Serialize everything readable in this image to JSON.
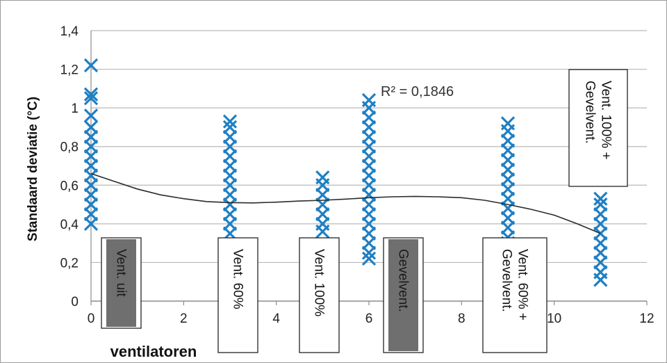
{
  "chart_data": {
    "type": "scatter",
    "title": "",
    "xlabel": "ventilatoren",
    "ylabel": "Standaard deviatie (°C)",
    "xlim": [
      0,
      12
    ],
    "ylim": [
      0,
      1.4
    ],
    "x_ticks": [
      "0",
      "2",
      "4",
      "6",
      "8",
      "10",
      "12"
    ],
    "y_ticks": [
      "0",
      "0,2",
      "0,4",
      "0,6",
      "0,8",
      "1",
      "1,2",
      "1,4"
    ],
    "grid": true,
    "marker": "x",
    "series_color": "#1f7fc4",
    "trend_color": "#2b2b2b",
    "series": [
      {
        "points": [
          {
            "x": 0,
            "y": 1.22
          },
          {
            "x": 0,
            "y": 1.07
          },
          {
            "x": 0,
            "y": 1.05
          },
          {
            "x": 0,
            "y": 0.96
          },
          {
            "x": 0,
            "y": 0.9
          },
          {
            "x": 0,
            "y": 0.85
          },
          {
            "x": 0,
            "y": 0.8
          },
          {
            "x": 0,
            "y": 0.75
          },
          {
            "x": 0,
            "y": 0.7
          },
          {
            "x": 0,
            "y": 0.65
          },
          {
            "x": 0,
            "y": 0.6
          },
          {
            "x": 0,
            "y": 0.55
          },
          {
            "x": 0,
            "y": 0.5
          },
          {
            "x": 0,
            "y": 0.45
          },
          {
            "x": 0,
            "y": 0.4
          },
          {
            "x": 3,
            "y": 0.93
          },
          {
            "x": 3,
            "y": 0.9
          },
          {
            "x": 3,
            "y": 0.85
          },
          {
            "x": 3,
            "y": 0.8
          },
          {
            "x": 3,
            "y": 0.75
          },
          {
            "x": 3,
            "y": 0.7
          },
          {
            "x": 3,
            "y": 0.65
          },
          {
            "x": 3,
            "y": 0.6
          },
          {
            "x": 3,
            "y": 0.55
          },
          {
            "x": 3,
            "y": 0.5
          },
          {
            "x": 3,
            "y": 0.45
          },
          {
            "x": 3,
            "y": 0.4
          },
          {
            "x": 3,
            "y": 0.35
          },
          {
            "x": 5,
            "y": 0.64
          },
          {
            "x": 5,
            "y": 0.6
          },
          {
            "x": 5,
            "y": 0.55
          },
          {
            "x": 5,
            "y": 0.5
          },
          {
            "x": 5,
            "y": 0.45
          },
          {
            "x": 5,
            "y": 0.4
          },
          {
            "x": 5,
            "y": 0.36
          },
          {
            "x": 6,
            "y": 1.04
          },
          {
            "x": 6,
            "y": 1.0
          },
          {
            "x": 6,
            "y": 0.95
          },
          {
            "x": 6,
            "y": 0.9
          },
          {
            "x": 6,
            "y": 0.85
          },
          {
            "x": 6,
            "y": 0.8
          },
          {
            "x": 6,
            "y": 0.75
          },
          {
            "x": 6,
            "y": 0.7
          },
          {
            "x": 6,
            "y": 0.65
          },
          {
            "x": 6,
            "y": 0.6
          },
          {
            "x": 6,
            "y": 0.55
          },
          {
            "x": 6,
            "y": 0.5
          },
          {
            "x": 6,
            "y": 0.45
          },
          {
            "x": 6,
            "y": 0.4
          },
          {
            "x": 6,
            "y": 0.35
          },
          {
            "x": 6,
            "y": 0.3
          },
          {
            "x": 6,
            "y": 0.25
          },
          {
            "x": 6,
            "y": 0.22
          },
          {
            "x": 9,
            "y": 0.92
          },
          {
            "x": 9,
            "y": 0.88
          },
          {
            "x": 9,
            "y": 0.83
          },
          {
            "x": 9,
            "y": 0.78
          },
          {
            "x": 9,
            "y": 0.73
          },
          {
            "x": 9,
            "y": 0.68
          },
          {
            "x": 9,
            "y": 0.63
          },
          {
            "x": 9,
            "y": 0.58
          },
          {
            "x": 9,
            "y": 0.53
          },
          {
            "x": 9,
            "y": 0.48
          },
          {
            "x": 9,
            "y": 0.43
          },
          {
            "x": 9,
            "y": 0.38
          },
          {
            "x": 9,
            "y": 0.33
          },
          {
            "x": 9,
            "y": 0.3
          },
          {
            "x": 11,
            "y": 0.53
          },
          {
            "x": 11,
            "y": 0.5
          },
          {
            "x": 11,
            "y": 0.45
          },
          {
            "x": 11,
            "y": 0.4
          },
          {
            "x": 11,
            "y": 0.35
          },
          {
            "x": 11,
            "y": 0.3
          },
          {
            "x": 11,
            "y": 0.25
          },
          {
            "x": 11,
            "y": 0.2
          },
          {
            "x": 11,
            "y": 0.15
          },
          {
            "x": 11,
            "y": 0.11
          }
        ]
      }
    ],
    "trendline": {
      "type": "polynomial",
      "label": "R² = 0,1846",
      "points": [
        {
          "x": 0,
          "y": 0.66
        },
        {
          "x": 0.5,
          "y": 0.62
        },
        {
          "x": 1,
          "y": 0.58
        },
        {
          "x": 1.5,
          "y": 0.55
        },
        {
          "x": 2,
          "y": 0.53
        },
        {
          "x": 2.5,
          "y": 0.515
        },
        {
          "x": 3,
          "y": 0.51
        },
        {
          "x": 3.5,
          "y": 0.508
        },
        {
          "x": 4,
          "y": 0.512
        },
        {
          "x": 4.5,
          "y": 0.518
        },
        {
          "x": 5,
          "y": 0.522
        },
        {
          "x": 5.5,
          "y": 0.528
        },
        {
          "x": 6,
          "y": 0.535
        },
        {
          "x": 6.5,
          "y": 0.54
        },
        {
          "x": 7,
          "y": 0.542
        },
        {
          "x": 7.5,
          "y": 0.54
        },
        {
          "x": 8,
          "y": 0.535
        },
        {
          "x": 8.5,
          "y": 0.522
        },
        {
          "x": 9,
          "y": 0.5
        },
        {
          "x": 9.5,
          "y": 0.475
        },
        {
          "x": 10,
          "y": 0.445
        },
        {
          "x": 10.5,
          "y": 0.4
        },
        {
          "x": 11,
          "y": 0.35
        }
      ]
    },
    "annotations": [
      {
        "x": 1,
        "text": "Vent. uit",
        "style": "dark"
      },
      {
        "x": 3.3,
        "text": "Vent. 60%",
        "style": "light"
      },
      {
        "x": 5,
        "text": "Vent. 100%",
        "style": "light"
      },
      {
        "x": 7,
        "text": "Gevelvent.",
        "style": "dark"
      },
      {
        "x": 9.5,
        "text": "Vent. 60% + Gevelvent.",
        "style": "light"
      },
      {
        "x": 11,
        "text": "Vent. 100% + Gevelvent.",
        "style": "light"
      }
    ]
  }
}
